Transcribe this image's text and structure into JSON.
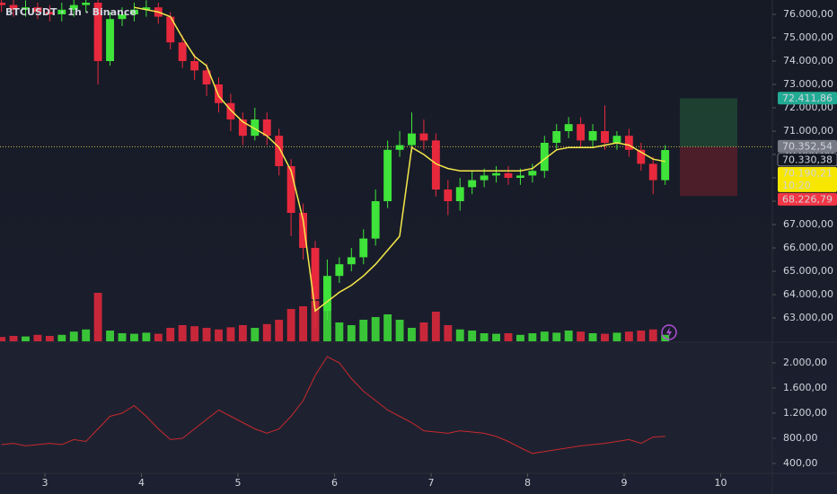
{
  "chart_data": {
    "type": "candlestick",
    "title": "BTCUSDT · 1h · Binance",
    "x": [
      2.55,
      2.675,
      2.8,
      2.925,
      3.05,
      3.175,
      3.3,
      3.425,
      3.55,
      3.675,
      3.8,
      3.925,
      4.05,
      4.175,
      4.3,
      4.425,
      4.55,
      4.675,
      4.8,
      4.925,
      5.05,
      5.175,
      5.3,
      5.425,
      5.55,
      5.675,
      5.8,
      5.925,
      6.05,
      6.175,
      6.3,
      6.425,
      6.55,
      6.675,
      6.8,
      6.925,
      7.05,
      7.175,
      7.3,
      7.425,
      7.55,
      7.675,
      7.8,
      7.925,
      8.05,
      8.175,
      8.3,
      8.425,
      8.55,
      8.675,
      8.8,
      8.925,
      9.05,
      9.175,
      9.3,
      9.425
    ],
    "xlim": [
      2.535,
      10.535
    ],
    "xticks": [
      3,
      4,
      5,
      6,
      7,
      8,
      9,
      10
    ],
    "open": [
      76500,
      76400,
      76200,
      76300,
      76100,
      76000,
      76200,
      76400,
      76500,
      74000,
      75800,
      76000,
      76200,
      76300,
      75900,
      74800,
      74000,
      73600,
      73000,
      72200,
      71500,
      70800,
      71500,
      70800,
      69500,
      67500,
      66000,
      63300,
      64800,
      65300,
      65600,
      66400,
      68000,
      70200,
      70400,
      70900,
      70600,
      68500,
      68000,
      68600,
      68900,
      69100,
      69200,
      69000,
      69100,
      69300,
      70500,
      71000,
      71300,
      70600,
      71000,
      70500,
      70800,
      70200,
      69600,
      68900
    ],
    "high": [
      76800,
      76700,
      76600,
      76500,
      76400,
      76500,
      76700,
      76900,
      76700,
      76100,
      76300,
      76500,
      76600,
      76500,
      76100,
      75100,
      74300,
      73900,
      73300,
      72600,
      71800,
      72000,
      71800,
      71100,
      69800,
      67900,
      66300,
      65500,
      65600,
      66000,
      66800,
      68500,
      70600,
      71000,
      71800,
      71500,
      70900,
      68900,
      69000,
      69300,
      69400,
      69500,
      69500,
      69400,
      69600,
      70800,
      71300,
      71600,
      71600,
      71300,
      72100,
      71000,
      71100,
      70500,
      69900,
      70400
    ],
    "low": [
      76100,
      75900,
      75900,
      75800,
      75700,
      75700,
      75900,
      76100,
      73000,
      73800,
      75500,
      75700,
      75900,
      75600,
      74500,
      73700,
      73200,
      72500,
      71800,
      71000,
      70400,
      70600,
      70400,
      69100,
      66500,
      65500,
      62600,
      62900,
      64500,
      65000,
      65300,
      66100,
      67700,
      69900,
      70100,
      70200,
      68200,
      67400,
      67600,
      68300,
      68600,
      68800,
      68700,
      68700,
      68800,
      69000,
      70200,
      70700,
      70300,
      70300,
      70200,
      70200,
      69900,
      69300,
      68300,
      68700
    ],
    "close": [
      76400,
      76200,
      76300,
      76100,
      76000,
      76200,
      76400,
      76500,
      74000,
      75800,
      76000,
      76200,
      76300,
      75900,
      74800,
      74000,
      73600,
      73000,
      72200,
      71500,
      70800,
      71500,
      70800,
      69500,
      67500,
      66000,
      63800,
      64800,
      65300,
      65600,
      66400,
      68000,
      70200,
      70400,
      70900,
      70600,
      68500,
      68000,
      68600,
      68900,
      69100,
      69200,
      69000,
      69100,
      69300,
      70500,
      71000,
      71300,
      70600,
      71000,
      70500,
      70800,
      70200,
      69600,
      68900,
      70190.21
    ],
    "volume": [
      8,
      10,
      9,
      12,
      10,
      12,
      18,
      22,
      90,
      20,
      15,
      14,
      16,
      14,
      25,
      30,
      28,
      25,
      22,
      26,
      30,
      25,
      32,
      40,
      60,
      65,
      75,
      70,
      35,
      30,
      40,
      45,
      50,
      40,
      25,
      35,
      55,
      30,
      22,
      20,
      15,
      14,
      15,
      12,
      15,
      18,
      16,
      20,
      18,
      15,
      14,
      16,
      18,
      20,
      22,
      12
    ],
    "up_color": "#3fe33a",
    "down_color": "#e8293d",
    "ylim": [
      62000,
      76615
    ],
    "yticks": [
      {
        "value": 63000,
        "label": "63.000,00"
      },
      {
        "value": 64000,
        "label": "64.000,00"
      },
      {
        "value": 65000,
        "label": "65.000,00"
      },
      {
        "value": 66000,
        "label": "66.000,00"
      },
      {
        "value": 67000,
        "label": "67.000,00"
      },
      {
        "value": 68000,
        "label": "68.000,00"
      },
      {
        "value": 69000,
        "label": "69.000,00"
      },
      {
        "value": 70000,
        "label": "70.000,00"
      },
      {
        "value": 71000,
        "label": "71.000,00"
      },
      {
        "value": 72000,
        "label": "72.000,00"
      },
      {
        "value": 73000,
        "label": "73.000,00"
      },
      {
        "value": 74000,
        "label": "74.000,00"
      },
      {
        "value": 75000,
        "label": "75.000,00"
      },
      {
        "value": 76000,
        "label": "76.000,00"
      }
    ],
    "ma": {
      "color": "#f5e94a",
      "values": [
        null,
        null,
        null,
        null,
        null,
        null,
        null,
        null,
        null,
        null,
        null,
        76300,
        76200,
        76100,
        75900,
        75000,
        74200,
        73800,
        72500,
        71900,
        71400,
        71100,
        70800,
        70300,
        69300,
        67200,
        63300,
        63700,
        64100,
        64400,
        64800,
        65300,
        65900,
        66500,
        70300,
        70000,
        69600,
        69400,
        69300,
        69300,
        69300,
        69300,
        69300,
        69300,
        69400,
        69800,
        70200,
        70300,
        70300,
        70300,
        70400,
        70500,
        70400,
        70100,
        69800,
        69700
      ]
    },
    "indicator": {
      "color": "#c9282e",
      "values": [
        700,
        720,
        680,
        700,
        720,
        700,
        780,
        750,
        950,
        1150,
        1200,
        1320,
        1150,
        950,
        780,
        800,
        950,
        1100,
        1250,
        1150,
        1050,
        950,
        880,
        950,
        1150,
        1400,
        1800,
        2100,
        2000,
        1750,
        1550,
        1400,
        1250,
        1150,
        1050,
        920,
        900,
        880,
        920,
        900,
        880,
        830,
        750,
        650,
        560,
        590,
        620,
        650,
        680,
        700,
        720,
        750,
        780,
        720,
        820,
        830
      ],
      "ylim": [
        271,
        2314
      ],
      "yticks": [
        {
          "value": 400,
          "label": "400,00"
        },
        {
          "value": 800,
          "label": "800,00"
        },
        {
          "value": 1200,
          "label": "1.200,00"
        },
        {
          "value": 1600,
          "label": "1.600,00"
        },
        {
          "value": 2000,
          "label": "2.000,00"
        }
      ]
    },
    "price_labels": [
      {
        "value": 72411.86,
        "label": "72.411,86",
        "color": "#22ab94"
      },
      {
        "value": 70352.54,
        "label": "70.352,54",
        "color": "#787b86"
      },
      {
        "value": 70330.38,
        "label": "70.330,38",
        "color": "#131722"
      },
      {
        "value": 70190.21,
        "label": "70.190,21",
        "color": "#f7e600"
      },
      {
        "value": 68226.79,
        "label": "68.226,79",
        "color": "#f23645"
      }
    ],
    "countdown": "10:20"
  }
}
